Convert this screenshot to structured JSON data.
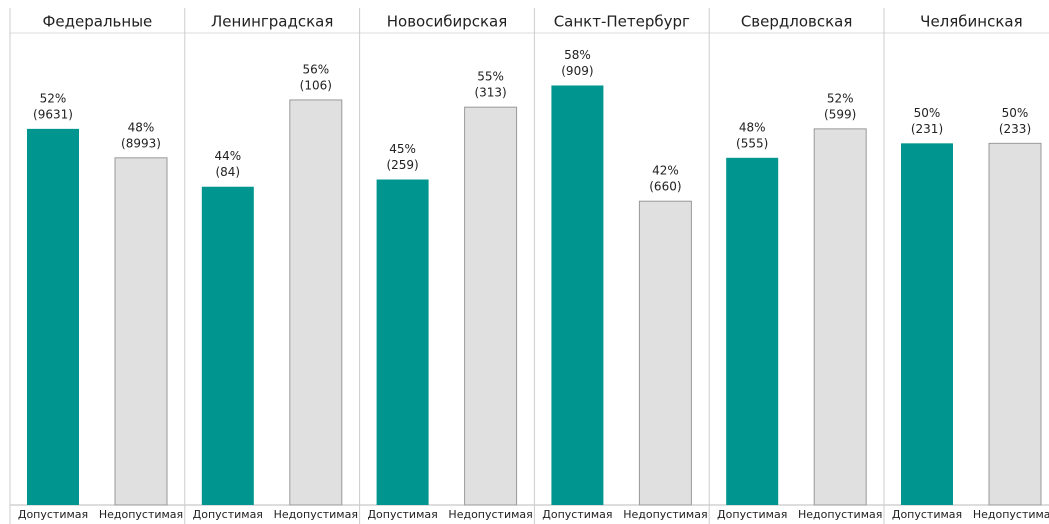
{
  "chart_data": [
    {
      "type": "bar",
      "title": "Федеральные",
      "categories": [
        "Допустимая",
        "Недопустимая"
      ],
      "values": [
        52,
        48
      ],
      "value_labels": [
        "52%",
        "48%"
      ],
      "count_labels": [
        "(9631)",
        "(8993)"
      ],
      "colors": [
        "#00968f",
        "#e0e0e0"
      ],
      "ylim": [
        0,
        60
      ]
    },
    {
      "type": "bar",
      "title": "Ленинградская",
      "categories": [
        "Допустимая",
        "Недопустимая"
      ],
      "values": [
        44,
        56
      ],
      "value_labels": [
        "44%",
        "56%"
      ],
      "count_labels": [
        "(84)",
        "(106)"
      ],
      "colors": [
        "#00968f",
        "#e0e0e0"
      ],
      "ylim": [
        0,
        60
      ]
    },
    {
      "type": "bar",
      "title": "Новосибирская",
      "categories": [
        "Допустимая",
        "Недопустимая"
      ],
      "values": [
        45,
        55
      ],
      "value_labels": [
        "45%",
        "55%"
      ],
      "count_labels": [
        "(259)",
        "(313)"
      ],
      "colors": [
        "#00968f",
        "#e0e0e0"
      ],
      "ylim": [
        0,
        60
      ]
    },
    {
      "type": "bar",
      "title": "Санкт-Петербург",
      "categories": [
        "Допустимая",
        "Недопустимая"
      ],
      "values": [
        58,
        42
      ],
      "value_labels": [
        "58%",
        "42%"
      ],
      "count_labels": [
        "(909)",
        "(660)"
      ],
      "colors": [
        "#00968f",
        "#e0e0e0"
      ],
      "ylim": [
        0,
        60
      ]
    },
    {
      "type": "bar",
      "title": "Свердловская",
      "categories": [
        "Допустимая",
        "Недопустимая"
      ],
      "values": [
        48,
        52
      ],
      "value_labels": [
        "48%",
        "52%"
      ],
      "count_labels": [
        "(555)",
        "(599)"
      ],
      "colors": [
        "#00968f",
        "#e0e0e0"
      ],
      "ylim": [
        0,
        60
      ]
    },
    {
      "type": "bar",
      "title": "Челябинская",
      "categories": [
        "Допустимая",
        "Недопустимая"
      ],
      "values": [
        50,
        50
      ],
      "value_labels": [
        "50%",
        "50%"
      ],
      "count_labels": [
        "(231)",
        "(233)"
      ],
      "colors": [
        "#00968f",
        "#e0e0e0"
      ],
      "ylim": [
        0,
        60
      ]
    }
  ]
}
